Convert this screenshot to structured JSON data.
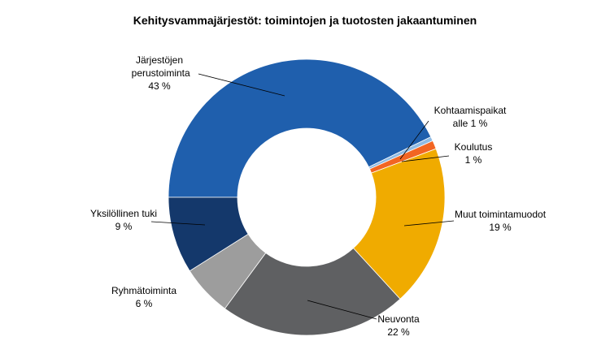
{
  "chart_data": {
    "type": "donut",
    "title": "Kehitysvammajärjestöt:  toimintojen  ja tuotosten  jakaantuminen",
    "categories": [
      "Järjestöjen perustoiminta",
      "Kohtaamispaikat",
      "Koulutus",
      "Muut toimintamuodot",
      "Neuvonta",
      "Ryhmätoiminta",
      "Yksilöllinen tuki"
    ],
    "values": [
      43,
      0.5,
      1,
      19,
      22,
      6,
      9
    ],
    "value_labels": [
      "43 %",
      "alle 1 %",
      "1 %",
      "19 %",
      "22 %",
      "6 %",
      "9 %"
    ],
    "colors": [
      "#1f5fad",
      "#8fbbe3",
      "#f26522",
      "#f0ab00",
      "#5f6062",
      "#9d9d9d",
      "#14386b"
    ]
  }
}
